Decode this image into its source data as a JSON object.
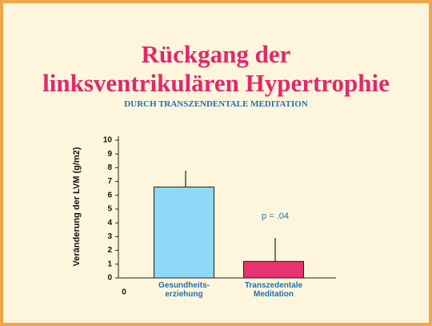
{
  "chart_data": {
    "type": "bar",
    "title": "Rückgang der\nlinksventrikulären Hypertrophie",
    "subtitle": "DURCH TRANSZENDENTALE MEDITATION",
    "y_label": "Veränderung der LVM (g/m2)",
    "categories": [
      "Gesundheits-\nerziehung",
      "Transzedentale\nMeditation"
    ],
    "values": [
      6.6,
      1.2
    ],
    "errors": [
      1.2,
      1.7
    ],
    "colors": [
      "#8fd8f7",
      "#e7336f"
    ],
    "annotations": [
      "p = .04",
      "0"
    ],
    "ylim": [
      0,
      10
    ],
    "yticks": [
      0,
      1,
      2,
      3,
      4,
      5,
      6,
      7,
      8,
      9,
      10
    ],
    "grid": false
  }
}
